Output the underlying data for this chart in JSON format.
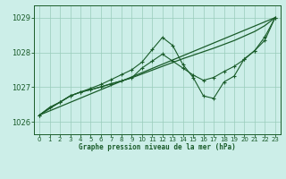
{
  "title": "Graphe pression niveau de la mer (hPa)",
  "background_color": "#cceee8",
  "grid_color": "#99ccbb",
  "line_color": "#1a5c2a",
  "xlim": [
    -0.5,
    23.5
  ],
  "ylim": [
    1025.65,
    1029.35
  ],
  "yticks": [
    1026,
    1027,
    1028,
    1029
  ],
  "xticks": [
    0,
    1,
    2,
    3,
    4,
    5,
    6,
    7,
    8,
    9,
    10,
    11,
    12,
    13,
    14,
    15,
    16,
    17,
    18,
    19,
    20,
    21,
    22,
    23
  ],
  "series1_x": [
    0,
    1,
    2,
    3,
    4,
    5,
    6,
    7,
    8,
    9,
    10,
    11,
    12,
    13,
    14,
    15,
    16,
    17,
    18,
    19,
    20,
    21,
    22,
    23
  ],
  "series1_y": [
    1026.2,
    1026.42,
    1026.57,
    1026.75,
    1026.86,
    1026.93,
    1027.01,
    1027.1,
    1027.18,
    1027.27,
    1027.38,
    1027.49,
    1027.6,
    1027.71,
    1027.82,
    1027.92,
    1028.02,
    1028.12,
    1028.23,
    1028.34,
    1028.47,
    1028.6,
    1028.77,
    1029.0
  ],
  "series2_x": [
    0,
    1,
    2,
    3,
    4,
    5,
    6,
    7,
    8,
    9,
    10,
    11,
    12,
    13,
    14,
    15,
    16,
    17,
    18,
    19,
    20,
    21,
    22,
    23
  ],
  "series2_y": [
    1026.2,
    1026.42,
    1026.57,
    1026.75,
    1026.86,
    1026.93,
    1027.01,
    1027.1,
    1027.18,
    1027.27,
    1027.55,
    1027.75,
    1027.95,
    1027.75,
    1027.55,
    1027.35,
    1027.2,
    1027.28,
    1027.45,
    1027.6,
    1027.8,
    1028.05,
    1028.35,
    1029.0
  ],
  "series3_x": [
    0,
    2,
    3,
    4,
    5,
    6,
    7,
    8,
    9,
    10,
    11,
    12,
    13,
    14,
    15,
    16,
    17,
    18,
    19,
    20,
    21,
    22,
    23
  ],
  "series3_y": [
    1026.2,
    1026.57,
    1026.75,
    1026.86,
    1026.97,
    1027.08,
    1027.22,
    1027.36,
    1027.5,
    1027.72,
    1028.08,
    1028.43,
    1028.2,
    1027.65,
    1027.28,
    1026.75,
    1026.68,
    1027.15,
    1027.32,
    1027.82,
    1028.05,
    1028.45,
    1029.0
  ],
  "series4_x": [
    0,
    23
  ],
  "series4_y": [
    1026.2,
    1029.0
  ]
}
